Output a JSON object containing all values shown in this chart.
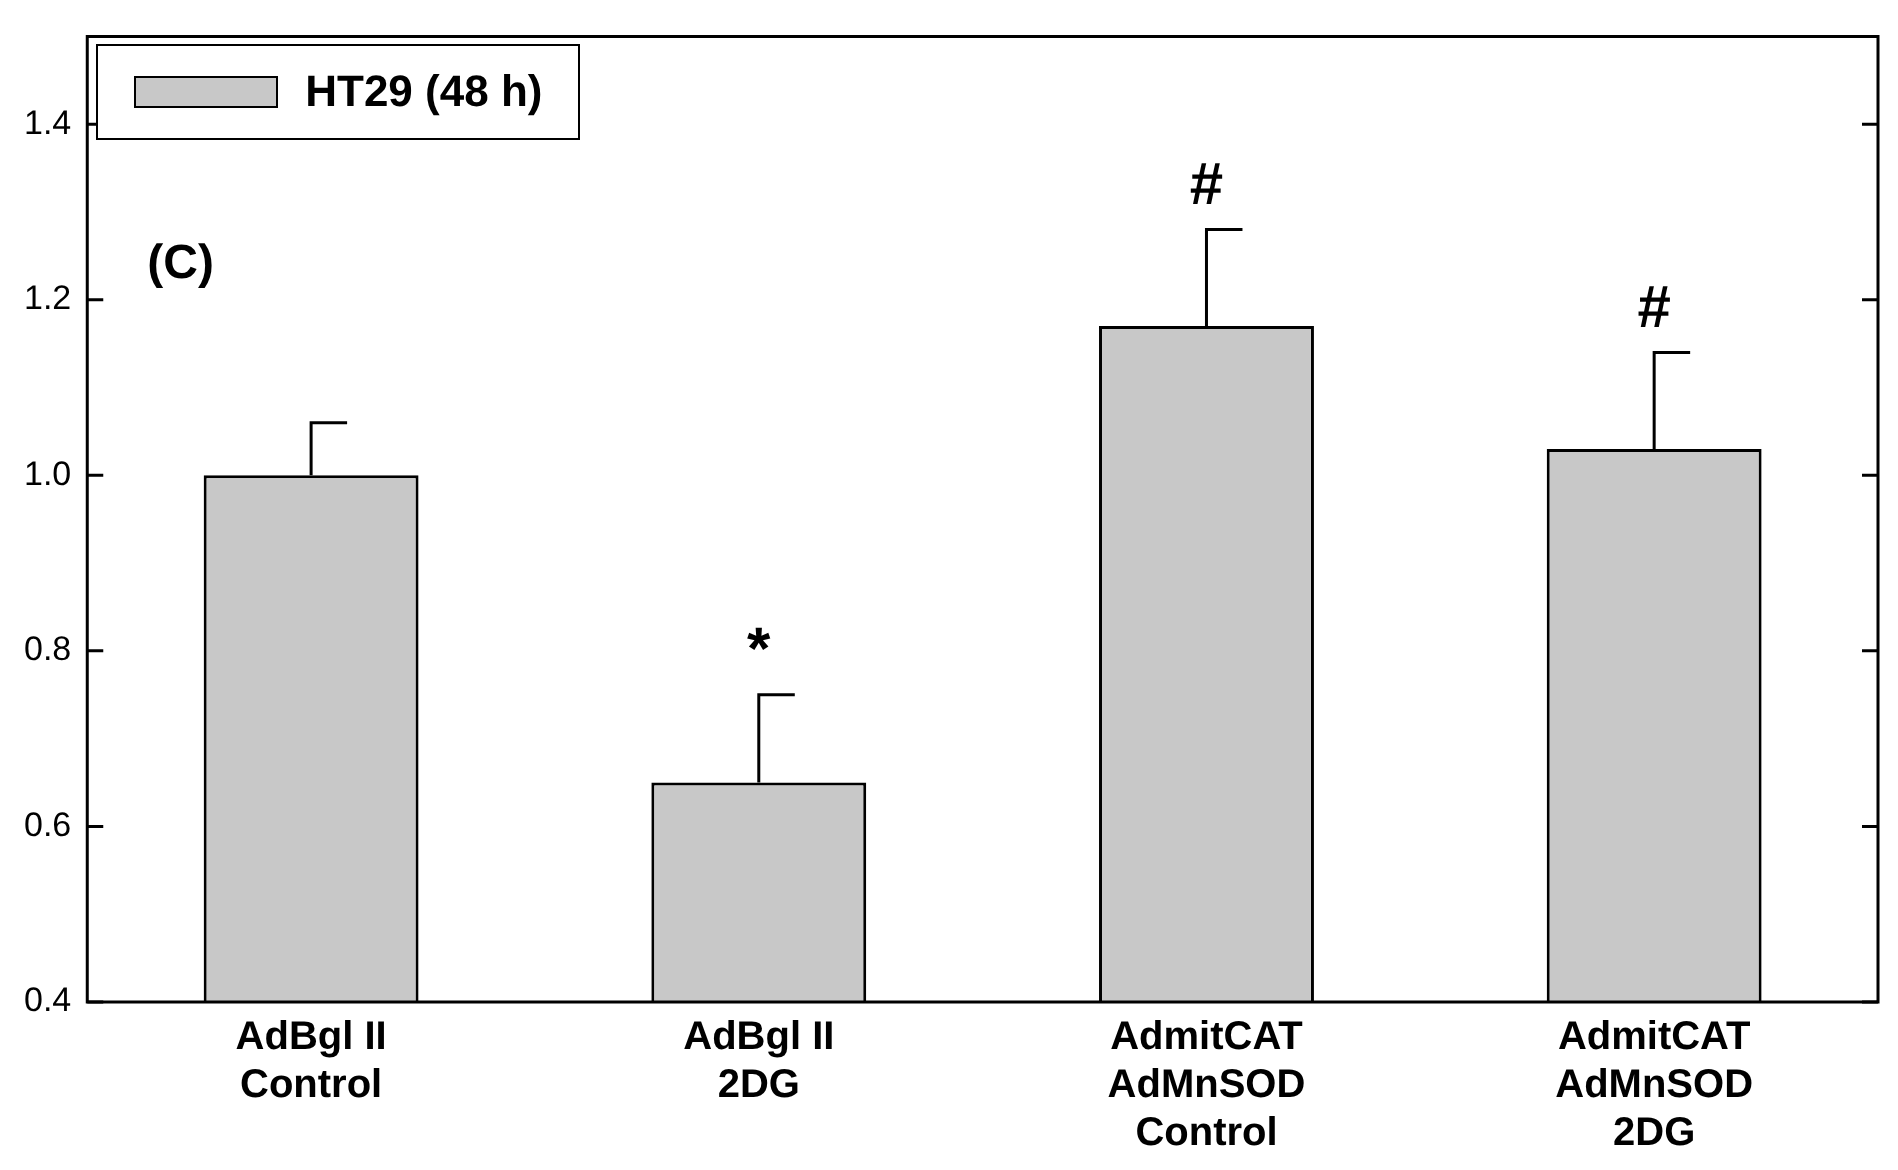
{
  "chart_data": {
    "type": "bar",
    "categories": [
      "AdBgl II\nControl",
      "AdBgl II\n2DG",
      "AdmitCAT\nAdMnSOD\nControl",
      "AdmitCAT\nAdMnSOD\n2DG"
    ],
    "series": [
      {
        "name": "HT29 (48 h)",
        "color": "#c8c8c8",
        "values": [
          1.0,
          0.65,
          1.17,
          1.03
        ],
        "errors": [
          [
            1.0,
            1.06
          ],
          [
            0.65,
            0.75
          ],
          [
            1.17,
            1.28
          ],
          [
            1.03,
            1.14
          ]
        ]
      }
    ],
    "ylim": [
      0.4,
      1.5
    ],
    "yticks": [
      {
        "value": 0.4,
        "label": "0.4"
      },
      {
        "value": 0.6,
        "label": "0.6"
      },
      {
        "value": 0.8,
        "label": "0.8"
      },
      {
        "value": 1.0,
        "label": "1.0"
      },
      {
        "value": 1.2,
        "label": "1.2"
      },
      {
        "value": 1.4,
        "label": "1.4"
      }
    ],
    "grid": false,
    "legend": "top left",
    "annotations": [
      "(C)",
      {
        "text": "*",
        "x": "AdBgl II\n2DG",
        "y": 0.75
      },
      {
        "text": "#",
        "x": "AdmitCAT\nAdMnSOD\nControl",
        "y": 1.28
      },
      {
        "text": "#",
        "x": "AdmitCAT\nAdMnSOD\n2DG",
        "y": 1.14
      }
    ]
  }
}
